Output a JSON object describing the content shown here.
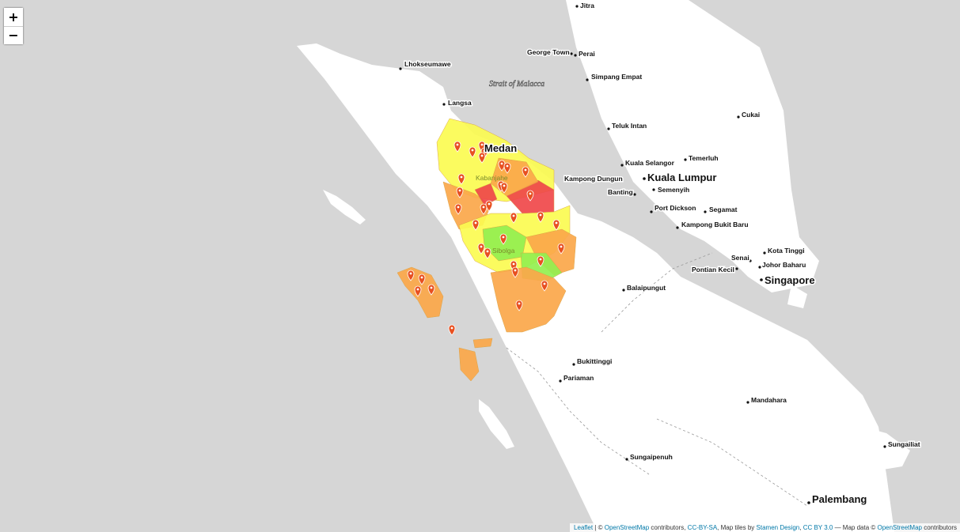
{
  "zoom": {
    "in_label": "+",
    "out_label": "−"
  },
  "water_labels": [
    {
      "name": "strait-label",
      "text": "Strait of Malacca"
    }
  ],
  "places": [
    {
      "name": "Jitra",
      "size": "small"
    },
    {
      "name": "George Town",
      "size": "small"
    },
    {
      "name": "Perai",
      "size": "small"
    },
    {
      "name": "Lhokseumawe",
      "size": "small"
    },
    {
      "name": "Simpang Empat",
      "size": "small"
    },
    {
      "name": "Langsa",
      "size": "small"
    },
    {
      "name": "Cukai",
      "size": "small"
    },
    {
      "name": "Teluk Intan",
      "size": "small"
    },
    {
      "name": "Medan",
      "size": "big"
    },
    {
      "name": "Temerluh",
      "size": "small"
    },
    {
      "name": "Kuala Selangor",
      "size": "small"
    },
    {
      "name": "Kabanjahe",
      "size": "small"
    },
    {
      "name": "Kuala Lumpur",
      "size": "big"
    },
    {
      "name": "Kampong Dungun",
      "size": "small"
    },
    {
      "name": "Semenyih",
      "size": "small"
    },
    {
      "name": "Banting",
      "size": "small"
    },
    {
      "name": "Port Dickson",
      "size": "small"
    },
    {
      "name": "Segamat",
      "size": "small"
    },
    {
      "name": "Kampong Bukit Baru",
      "size": "small"
    },
    {
      "name": "Sibolga",
      "size": "small"
    },
    {
      "name": "Kota Tinggi",
      "size": "small"
    },
    {
      "name": "Senai",
      "size": "small"
    },
    {
      "name": "Johor Baharu",
      "size": "small"
    },
    {
      "name": "Pontian Kecil",
      "size": "small"
    },
    {
      "name": "Singapore",
      "size": "big"
    },
    {
      "name": "Balaipungut",
      "size": "small"
    },
    {
      "name": "Bukittinggi",
      "size": "small"
    },
    {
      "name": "Pariaman",
      "size": "small"
    },
    {
      "name": "Mandahara",
      "size": "small"
    },
    {
      "name": "Sungailiat",
      "size": "small"
    },
    {
      "name": "Sungaipenuh",
      "size": "small"
    },
    {
      "name": "Palembang",
      "size": "big"
    }
  ],
  "choropleth_colors": {
    "high": "#f0484a",
    "medium": "#fba84a",
    "low": "#fbfb52",
    "none": "#93f050"
  },
  "marker_color": "#e85020",
  "attribution": {
    "leaflet": "Leaflet",
    "sep1": " | © ",
    "osm1": "OpenStreetMap",
    "contrib1": " contributors, ",
    "ccbysa": "CC-BY-SA",
    "tiles": ", Map tiles by ",
    "stamen": "Stamen Design",
    "comma": ", ",
    "ccby": "CC BY 3.0",
    "mapdata": " — Map data © ",
    "osm2": "OpenStreetMap",
    "contrib2": " contributors"
  }
}
